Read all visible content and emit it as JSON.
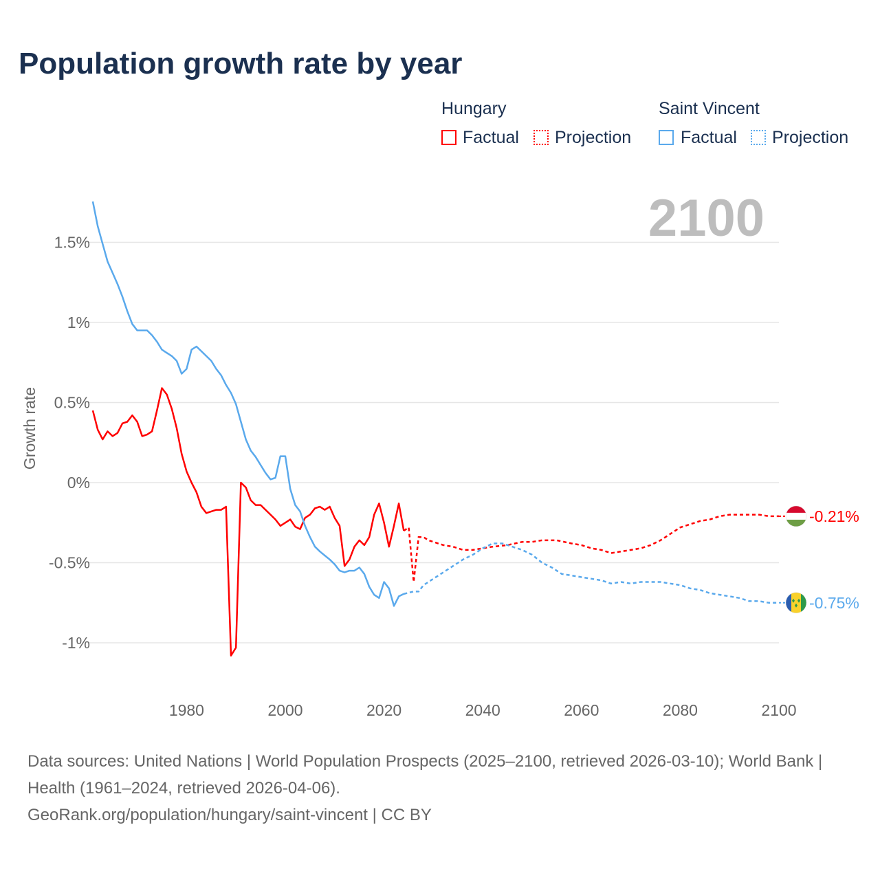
{
  "chart_data": {
    "type": "line",
    "title": "Population growth rate by year",
    "xlabel": "",
    "ylabel": "Growth rate",
    "xlim": [
      1961,
      2100
    ],
    "ylim": [
      -1.2,
      1.8
    ],
    "xticks": [
      1980,
      2000,
      2020,
      2040,
      2060,
      2080,
      2100
    ],
    "yticks": [
      {
        "v": 1.5,
        "label": "1.5%"
      },
      {
        "v": 1,
        "label": "1%"
      },
      {
        "v": 0.5,
        "label": "0.5%"
      },
      {
        "v": 0,
        "label": "0%"
      },
      {
        "v": -0.5,
        "label": "-0.5%"
      },
      {
        "v": -1,
        "label": "-1%"
      }
    ],
    "grid": true,
    "year_label": "2100",
    "legend": {
      "placement": "top-right",
      "groups": [
        {
          "name": "Hungary",
          "factual": "Factual",
          "projection": "Projection"
        },
        {
          "name": "Saint Vincent",
          "factual": "Factual",
          "projection": "Projection"
        }
      ]
    },
    "series": [
      {
        "name": "Hungary",
        "color": "#ff0000",
        "end_label": "-0.21%",
        "factual": {
          "x": [
            1961,
            1962,
            1963,
            1964,
            1965,
            1966,
            1967,
            1968,
            1969,
            1970,
            1971,
            1972,
            1973,
            1974,
            1975,
            1976,
            1977,
            1978,
            1979,
            1980,
            1981,
            1982,
            1983,
            1984,
            1985,
            1986,
            1987,
            1988,
            1989,
            1990,
            1991,
            1992,
            1993,
            1994,
            1995,
            1996,
            1997,
            1998,
            1999,
            2000,
            2001,
            2002,
            2003,
            2004,
            2005,
            2006,
            2007,
            2008,
            2009,
            2010,
            2011,
            2012,
            2013,
            2014,
            2015,
            2016,
            2017,
            2018,
            2019,
            2020,
            2021,
            2022,
            2023,
            2024
          ],
          "y": [
            0.45,
            0.33,
            0.27,
            0.32,
            0.29,
            0.31,
            0.37,
            0.38,
            0.42,
            0.38,
            0.29,
            0.3,
            0.32,
            0.45,
            0.59,
            0.55,
            0.46,
            0.34,
            0.18,
            0.07,
            0.0,
            -0.06,
            -0.15,
            -0.19,
            -0.18,
            -0.17,
            -0.17,
            -0.15,
            -1.08,
            -1.03,
            0.0,
            -0.03,
            -0.11,
            -0.14,
            -0.14,
            -0.17,
            -0.2,
            -0.23,
            -0.27,
            -0.25,
            -0.23,
            -0.275,
            -0.29,
            -0.22,
            -0.2,
            -0.16,
            -0.15,
            -0.17,
            -0.15,
            -0.22,
            -0.27,
            -0.52,
            -0.48,
            -0.4,
            -0.36,
            -0.39,
            -0.34,
            -0.2,
            -0.13,
            -0.25,
            -0.4,
            -0.27,
            -0.13,
            -0.3
          ]
        },
        "projection": {
          "x": [
            2024,
            2025,
            2026,
            2027,
            2028,
            2029,
            2030,
            2032,
            2034,
            2036,
            2038,
            2040,
            2042,
            2045,
            2048,
            2050,
            2052,
            2055,
            2058,
            2060,
            2062,
            2064,
            2066,
            2068,
            2070,
            2072,
            2074,
            2076,
            2078,
            2080,
            2082,
            2084,
            2086,
            2088,
            2090,
            2092,
            2094,
            2096,
            2098,
            2100
          ],
          "y": [
            -0.3,
            -0.28,
            -0.62,
            -0.34,
            -0.34,
            -0.36,
            -0.37,
            -0.39,
            -0.4,
            -0.42,
            -0.42,
            -0.41,
            -0.4,
            -0.39,
            -0.37,
            -0.37,
            -0.36,
            -0.36,
            -0.38,
            -0.39,
            -0.41,
            -0.42,
            -0.44,
            -0.43,
            -0.42,
            -0.41,
            -0.39,
            -0.36,
            -0.32,
            -0.28,
            -0.26,
            -0.24,
            -0.23,
            -0.21,
            -0.2,
            -0.2,
            -0.2,
            -0.2,
            -0.21,
            -0.21
          ]
        }
      },
      {
        "name": "Saint Vincent",
        "color": "#5aa9ec",
        "end_label": "-0.75%",
        "factual": {
          "x": [
            1961,
            1962,
            1963,
            1964,
            1965,
            1966,
            1967,
            1968,
            1969,
            1970,
            1971,
            1972,
            1973,
            1974,
            1975,
            1976,
            1977,
            1978,
            1979,
            1980,
            1981,
            1982,
            1983,
            1984,
            1985,
            1986,
            1987,
            1988,
            1989,
            1990,
            1991,
            1992,
            1993,
            1994,
            1995,
            1996,
            1997,
            1998,
            1999,
            2000,
            2001,
            2002,
            2003,
            2004,
            2005,
            2006,
            2007,
            2008,
            2009,
            2010,
            2011,
            2012,
            2013,
            2014,
            2015,
            2016,
            2017,
            2018,
            2019,
            2020,
            2021,
            2022,
            2023,
            2024
          ],
          "y": [
            1.755,
            1.6,
            1.49,
            1.38,
            1.31,
            1.24,
            1.16,
            1.07,
            0.99,
            0.95,
            0.95,
            0.95,
            0.92,
            0.88,
            0.83,
            0.81,
            0.79,
            0.76,
            0.68,
            0.71,
            0.83,
            0.85,
            0.82,
            0.79,
            0.76,
            0.71,
            0.67,
            0.61,
            0.56,
            0.49,
            0.38,
            0.27,
            0.2,
            0.16,
            0.11,
            0.06,
            0.02,
            0.03,
            0.165,
            0.165,
            -0.04,
            -0.14,
            -0.18,
            -0.27,
            -0.34,
            -0.4,
            -0.43,
            -0.455,
            -0.48,
            -0.51,
            -0.55,
            -0.56,
            -0.55,
            -0.55,
            -0.53,
            -0.57,
            -0.65,
            -0.7,
            -0.72,
            -0.62,
            -0.66,
            -0.77,
            -0.71,
            -0.695
          ]
        },
        "projection": {
          "x": [
            2024,
            2026,
            2027,
            2028,
            2030,
            2032,
            2034,
            2036,
            2038,
            2040,
            2042,
            2044,
            2046,
            2048,
            2050,
            2052,
            2054,
            2056,
            2058,
            2060,
            2062,
            2064,
            2066,
            2068,
            2070,
            2072,
            2074,
            2076,
            2078,
            2080,
            2082,
            2084,
            2086,
            2088,
            2090,
            2092,
            2094,
            2096,
            2098,
            2100
          ],
          "y": [
            -0.695,
            -0.68,
            -0.68,
            -0.64,
            -0.6,
            -0.56,
            -0.52,
            -0.48,
            -0.45,
            -0.41,
            -0.38,
            -0.38,
            -0.4,
            -0.42,
            -0.45,
            -0.5,
            -0.53,
            -0.57,
            -0.58,
            -0.59,
            -0.6,
            -0.61,
            -0.63,
            -0.62,
            -0.63,
            -0.62,
            -0.62,
            -0.62,
            -0.63,
            -0.64,
            -0.66,
            -0.67,
            -0.69,
            -0.7,
            -0.71,
            -0.72,
            -0.74,
            -0.74,
            -0.75,
            -0.75
          ]
        }
      }
    ]
  },
  "footer": {
    "sources": "Data sources: United Nations | World Population Prospects (2025–2100, retrieved 2026-03-10); World Bank | Health (1961–2024, retrieved 2026-04-06).",
    "link": "GeoRank.org/population/hungary/saint-vincent | CC BY"
  }
}
